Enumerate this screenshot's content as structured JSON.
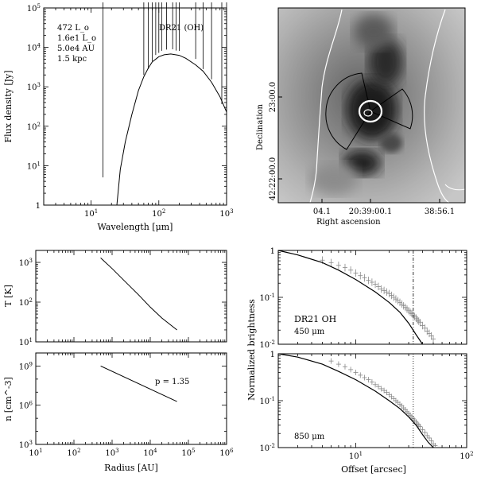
{
  "chart_data": [
    {
      "id": "sed",
      "type": "line",
      "xlabel": "Wavelength [μm]",
      "ylabel": "Flux density [Jy]",
      "xscale": "log",
      "yscale": "log",
      "xlim": [
        2,
        1000
      ],
      "ylim": [
        1,
        100000
      ],
      "x_ticks": [
        {
          "v": 10,
          "label": "10^1"
        },
        {
          "v": 100,
          "label": "10^2"
        },
        {
          "v": 1000,
          "label": "10^3"
        }
      ],
      "y_ticks": [
        {
          "v": 1,
          "label": "1"
        },
        {
          "v": 10,
          "label": "10^1"
        },
        {
          "v": 100,
          "label": "10^2"
        },
        {
          "v": 1000,
          "label": "10^3"
        },
        {
          "v": 10000,
          "label": "10^4"
        },
        {
          "v": 100000,
          "label": "10^5"
        }
      ],
      "annotations": {
        "source": "DR21 (OH)",
        "params": [
          "472 L_o",
          "1.6e1 L_o",
          "5.0e4 AU",
          "1.5 kpc"
        ]
      },
      "model": [
        [
          24,
          1
        ],
        [
          27,
          8
        ],
        [
          32,
          40
        ],
        [
          40,
          200
        ],
        [
          50,
          800
        ],
        [
          60,
          1800
        ],
        [
          70,
          3000
        ],
        [
          80,
          4300
        ],
        [
          100,
          5800
        ],
        [
          120,
          6500
        ],
        [
          150,
          6800
        ],
        [
          200,
          6300
        ],
        [
          250,
          5300
        ],
        [
          350,
          3600
        ],
        [
          450,
          2500
        ],
        [
          600,
          1300
        ],
        [
          800,
          560
        ],
        [
          1000,
          230
        ]
      ],
      "points": [
        {
          "x": 15,
          "y": 4.5,
          "err": 0.05
        },
        {
          "x": 60,
          "y": 1000,
          "err": 0.3
        },
        {
          "x": 70,
          "y": 1800,
          "err": 0.2
        },
        {
          "x": 80,
          "y": 2500,
          "err": 0.25
        },
        {
          "x": 90,
          "y": 3600,
          "err": 0.25
        },
        {
          "x": 100,
          "y": 5500,
          "err": 0.12
        },
        {
          "x": 110,
          "y": 6500,
          "err": 0.1
        },
        {
          "x": 130,
          "y": 7000,
          "err": 0.1
        },
        {
          "x": 160,
          "y": 7100,
          "err": 0.1
        },
        {
          "x": 180,
          "y": 6600,
          "err": 0.1
        },
        {
          "x": 200,
          "y": 6200,
          "err": 0.12
        },
        {
          "x": 350,
          "y": 3600,
          "err": 0.15
        },
        {
          "x": 450,
          "y": 2000,
          "err": 0.15
        },
        {
          "x": 600,
          "y": 1100,
          "err": 0.15
        },
        {
          "x": 850,
          "y": 230,
          "err": 0.2
        },
        {
          "x": 1000,
          "y": 90,
          "err": 0.15
        }
      ]
    },
    {
      "id": "map",
      "type": "image",
      "ylabel": "Declination",
      "xlabel": "Right ascension",
      "x_tick_labels": [
        "04.1",
        "20:39:00.1",
        "38:56.1"
      ],
      "y_tick_labels": [
        "23:00.0",
        "42:22:00.0"
      ]
    },
    {
      "id": "temperature",
      "type": "line",
      "ylabel": "T [K]",
      "xscale": "log",
      "yscale": "log",
      "xlim": [
        10,
        1000000
      ],
      "ylim": [
        10,
        2000
      ],
      "y_ticks": [
        {
          "v": 10,
          "label": "10^1"
        },
        {
          "v": 100,
          "label": "10^2"
        },
        {
          "v": 1000,
          "label": "10^3"
        }
      ],
      "x": [
        500,
        1000,
        2000,
        5000,
        10000,
        20000,
        50000
      ],
      "y": [
        1300,
        700,
        360,
        150,
        75,
        40,
        20
      ]
    },
    {
      "id": "density",
      "type": "line",
      "xlabel": "Radius [AU]",
      "ylabel": "n [cm^-3]",
      "xscale": "log",
      "yscale": "log",
      "xlim": [
        10,
        1000000
      ],
      "ylim": [
        1000,
        10000000000
      ],
      "x_ticks": [
        {
          "v": 10,
          "label": "10^1"
        },
        {
          "v": 100,
          "label": "10^2"
        },
        {
          "v": 1000,
          "label": "10^3"
        },
        {
          "v": 10000,
          "label": "10^4"
        },
        {
          "v": 100000,
          "label": "10^5"
        },
        {
          "v": 1000000,
          "label": "10^6"
        }
      ],
      "y_ticks": [
        {
          "v": 1000,
          "label": "10^3"
        },
        {
          "v": 1000000,
          "label": "10^6"
        },
        {
          "v": 1000000000,
          "label": "10^9"
        }
      ],
      "annotation": "p = 1.35",
      "x": [
        500,
        50000
      ],
      "y": [
        1000000000,
        1900000
      ]
    },
    {
      "id": "profile450",
      "type": "line",
      "ylabel": "Normalized brightness",
      "xscale": "log",
      "yscale": "log",
      "xlim": [
        2,
        100
      ],
      "ylim": [
        0.01,
        1
      ],
      "y_ticks": [
        {
          "v": 0.01,
          "label": "10^-2"
        },
        {
          "v": 0.1,
          "label": "10^-1"
        },
        {
          "v": 1,
          "label": "1"
        }
      ],
      "annotations": {
        "source": "DR21 OH",
        "wavelength": "450 μm"
      },
      "vline": 33,
      "model_x": [
        2,
        3,
        5,
        7,
        10,
        15,
        20,
        25,
        30,
        35,
        40
      ],
      "model_y": [
        1,
        0.8,
        0.55,
        0.38,
        0.24,
        0.13,
        0.078,
        0.048,
        0.028,
        0.016,
        0.01
      ],
      "data_x": [
        5,
        6,
        7,
        8,
        9,
        10,
        11,
        12,
        13,
        14,
        15,
        16,
        17,
        18,
        19,
        20,
        21,
        22,
        23,
        24,
        25,
        26,
        27,
        28,
        29,
        30,
        31,
        32,
        33,
        34,
        35,
        36,
        37,
        38,
        40,
        42,
        44,
        46,
        48,
        50
      ],
      "data_y": [
        0.62,
        0.55,
        0.48,
        0.43,
        0.38,
        0.33,
        0.29,
        0.26,
        0.23,
        0.21,
        0.19,
        0.17,
        0.15,
        0.14,
        0.13,
        0.12,
        0.11,
        0.1,
        0.092,
        0.085,
        0.078,
        0.072,
        0.066,
        0.061,
        0.056,
        0.052,
        0.048,
        0.045,
        0.042,
        0.039,
        0.036,
        0.033,
        0.031,
        0.029,
        0.025,
        0.022,
        0.019,
        0.017,
        0.015,
        0.013
      ],
      "err_dex": 0.08
    },
    {
      "id": "profile850",
      "type": "line",
      "xlabel": "Offset [arcsec]",
      "ylabel": "Normalized brightness",
      "xscale": "log",
      "yscale": "log",
      "xlim": [
        2,
        100
      ],
      "ylim": [
        0.01,
        1
      ],
      "x_ticks": [
        {
          "v": 10,
          "label": "10^1"
        },
        {
          "v": 100,
          "label": "10^2"
        }
      ],
      "y_ticks": [
        {
          "v": 0.01,
          "label": "10^-2"
        },
        {
          "v": 0.1,
          "label": "10^-1"
        },
        {
          "v": 1,
          "label": "1"
        }
      ],
      "annotations": {
        "wavelength": "850 μm"
      },
      "vline": 33,
      "model_x": [
        2,
        3,
        5,
        7,
        10,
        15,
        20,
        25,
        30,
        35,
        40,
        45,
        50
      ],
      "model_y": [
        1,
        0.85,
        0.6,
        0.42,
        0.28,
        0.16,
        0.1,
        0.068,
        0.045,
        0.03,
        0.019,
        0.013,
        0.01
      ],
      "data_x": [
        6,
        7,
        8,
        9,
        10,
        11,
        12,
        13,
        14,
        15,
        16,
        17,
        18,
        19,
        20,
        21,
        22,
        23,
        24,
        25,
        26,
        27,
        28,
        29,
        30,
        31,
        32,
        33,
        34,
        35,
        36,
        37,
        38,
        40,
        42,
        44,
        46,
        48,
        50,
        52
      ],
      "data_y": [
        0.7,
        0.6,
        0.53,
        0.46,
        0.4,
        0.35,
        0.31,
        0.28,
        0.25,
        0.22,
        0.2,
        0.18,
        0.165,
        0.15,
        0.135,
        0.122,
        0.11,
        0.1,
        0.092,
        0.084,
        0.077,
        0.07,
        0.064,
        0.058,
        0.053,
        0.049,
        0.045,
        0.041,
        0.038,
        0.035,
        0.032,
        0.03,
        0.028,
        0.024,
        0.021,
        0.018,
        0.016,
        0.014,
        0.012,
        0.011
      ],
      "err_dex": 0.06
    }
  ]
}
